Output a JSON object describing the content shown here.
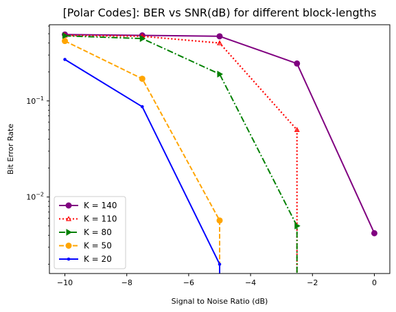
{
  "chart_data": {
    "type": "line",
    "title": "[Polar Codes]: BER vs SNR(dB) for different block-lengths",
    "xlabel": "Signal to Noise Ratio (dB)",
    "ylabel": "Bit Error Rate",
    "xlim": [
      -10.5,
      0.5
    ],
    "ylim": [
      0.0016,
      0.62
    ],
    "yscale": "log",
    "grid": false,
    "legend_position": "lower-left",
    "x_ticks": [
      -10,
      -8,
      -6,
      -4,
      -2,
      0
    ],
    "x_tick_labels": [
      "−10",
      "−8",
      "−6",
      "−4",
      "−2",
      "0"
    ],
    "y_ticks": [
      {
        "value": 0.01,
        "base": "10",
        "exp": "−2"
      },
      {
        "value": 0.1,
        "base": "10",
        "exp": "−1"
      }
    ],
    "series": [
      {
        "name": "K = 140",
        "color": "#800080",
        "dash": "solid",
        "marker": "circle",
        "x": [
          -10,
          -7.5,
          -5,
          -2.5,
          0
        ],
        "y": [
          0.49,
          0.48,
          0.47,
          0.245,
          0.0042
        ]
      },
      {
        "name": "K = 110",
        "color": "#ff0000",
        "dash": "dotted",
        "marker": "triangle-up",
        "x": [
          -10,
          -7.5,
          -5,
          -2.5,
          -2.5
        ],
        "y": [
          0.48,
          0.47,
          0.4,
          0.05,
          0.0016
        ]
      },
      {
        "name": "K = 80",
        "color": "#008000",
        "dash": "dashdot",
        "marker": "triangle-right",
        "x": [
          -10,
          -7.5,
          -5,
          -2.5,
          -2.5
        ],
        "y": [
          0.475,
          0.445,
          0.19,
          0.005,
          0.0016
        ]
      },
      {
        "name": "K = 50",
        "color": "#ffa500",
        "dash": "dashed",
        "marker": "circle",
        "x": [
          -10,
          -7.5,
          -5,
          -5
        ],
        "y": [
          0.42,
          0.17,
          0.0057,
          0.0016
        ]
      },
      {
        "name": "K = 20",
        "color": "#0000ff",
        "dash": "solid",
        "marker": "point",
        "x": [
          -10,
          -7.5,
          -5,
          -5
        ],
        "y": [
          0.27,
          0.087,
          0.002,
          0.0016
        ]
      }
    ]
  }
}
